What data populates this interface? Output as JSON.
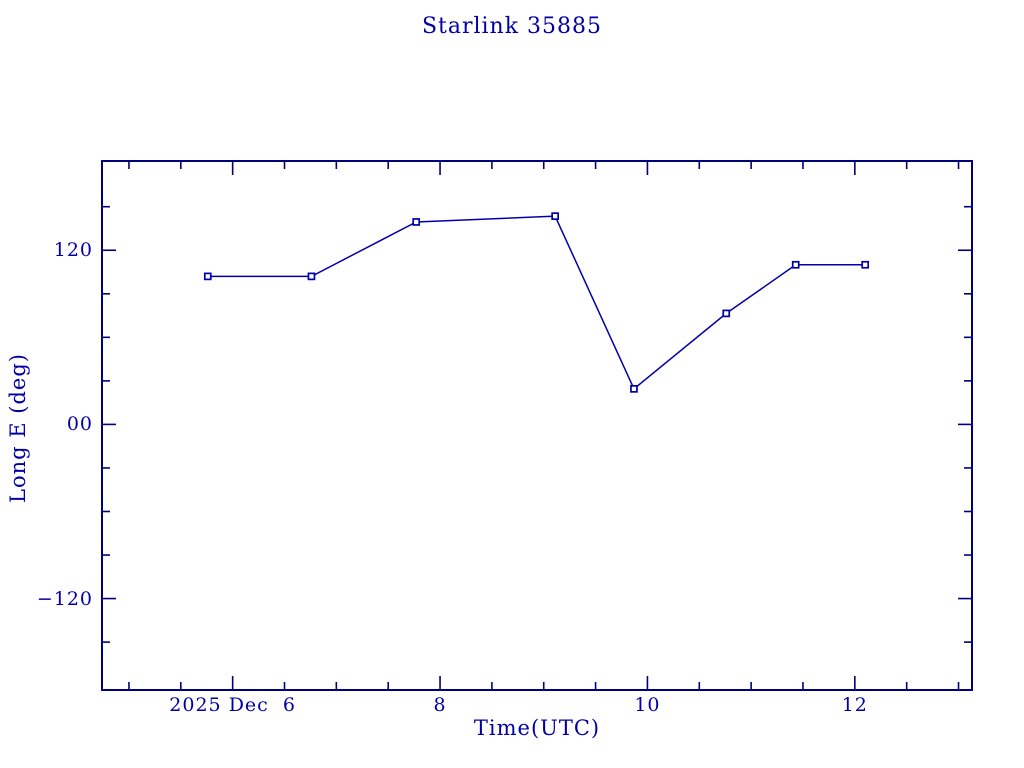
{
  "chart_data": {
    "type": "line",
    "title": "Starlink 35885",
    "xlabel": "Time(UTC)",
    "ylabel": "Long E (deg)",
    "x_axis_unit": "day of December 2025 (UTC)",
    "xlim": [
      4.74,
      13.13
    ],
    "ylim": [
      -183,
      181.5
    ],
    "grid": "off",
    "legend": "none",
    "x_major_ticks": [
      {
        "value": 6,
        "label": "2025 Dec  6"
      },
      {
        "value": 8,
        "label": "8"
      },
      {
        "value": 10,
        "label": "10"
      },
      {
        "value": 12,
        "label": "12"
      }
    ],
    "x_minor_tick_step": 0.5,
    "x_minor_tick_range": [
      5,
      13
    ],
    "y_major_ticks": [
      {
        "value": 120,
        "label": "120"
      },
      {
        "value": 0,
        "label": "00"
      },
      {
        "value": -120,
        "label": "−120"
      }
    ],
    "y_minor_tick_step": 30,
    "y_minor_tick_range": [
      -150,
      150
    ],
    "series": [
      {
        "name": "Long E (deg)",
        "marker": "open-square",
        "x": [
          5.76,
          6.76,
          7.77,
          9.11,
          9.87,
          10.76,
          11.43,
          12.1
        ],
        "y": [
          102,
          102,
          139.5,
          143.5,
          24.5,
          76.5,
          110,
          110
        ]
      }
    ],
    "colors": {
      "ink": "#0000aa",
      "text": "#0000a6",
      "frame": "#000078",
      "background": "#ffffff"
    }
  }
}
